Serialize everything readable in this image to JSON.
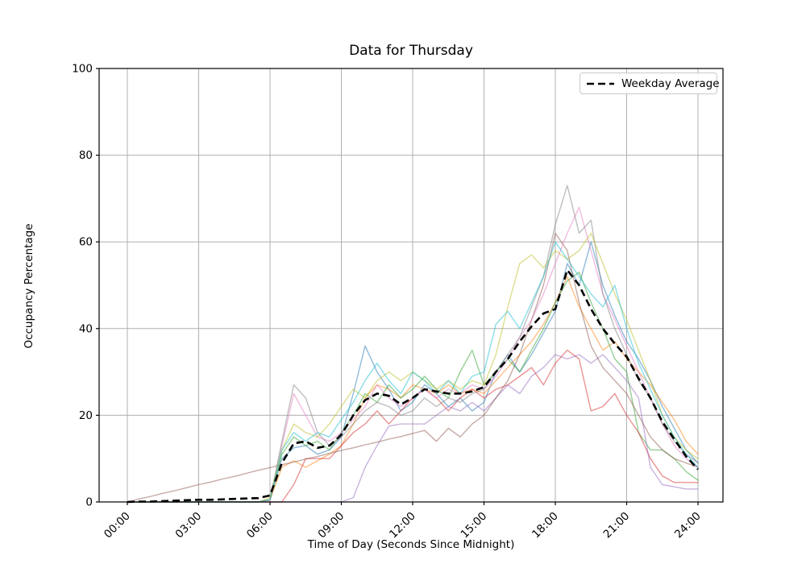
{
  "chart_data": {
    "type": "line",
    "title": "Data for Thursday",
    "xlabel": "Time of Day (Seconds Since Midnight)",
    "ylabel": "Occupancy Percentage",
    "x_start_hours": 0,
    "x_step_hours": 0.5,
    "x_tick_labels": [
      "00:00",
      "03:00",
      "06:00",
      "09:00",
      "12:00",
      "15:00",
      "18:00",
      "21:00",
      "24:00"
    ],
    "x_tick_hours": [
      0,
      3,
      6,
      9,
      12,
      15,
      18,
      21,
      24
    ],
    "y_ticks": [
      0,
      20,
      40,
      60,
      80,
      100
    ],
    "ylim": [
      0,
      100
    ],
    "xlim_hours": [
      0,
      24
    ],
    "grid": "on",
    "legend": {
      "position": "upper-right",
      "entries": [
        {
          "label": "Weekday Average",
          "style": "dashed",
          "color": "#000000"
        }
      ]
    },
    "colors": {
      "grid": "#b0b0b0",
      "spine": "#000000",
      "average": "#000000",
      "day_alpha": 0.5
    },
    "series": [
      {
        "name": "day-blue",
        "color": "#1f77b4",
        "values": [
          0,
          0,
          0,
          0,
          0,
          0,
          0,
          0,
          0,
          0,
          0,
          0,
          0.5,
          10,
          12.5,
          13,
          11,
          12,
          15,
          25,
          36,
          30,
          26,
          21,
          23,
          27,
          25,
          22,
          24,
          21,
          23,
          30,
          34,
          30,
          34,
          39,
          44,
          55,
          50,
          60,
          50,
          43,
          37,
          33,
          28,
          22,
          17,
          12,
          9
        ]
      },
      {
        "name": "day-orange",
        "color": "#ff7f0e",
        "values": [
          0,
          0,
          0,
          0,
          0,
          0,
          0,
          0,
          0,
          0,
          0,
          0,
          0.5,
          8,
          9.5,
          8,
          9.5,
          11,
          13,
          18,
          24,
          27,
          26,
          24,
          27,
          26,
          25,
          27,
          25,
          26,
          25,
          28,
          31,
          34,
          37,
          41,
          46,
          52,
          45,
          40,
          35,
          37,
          33,
          30,
          27,
          23,
          19,
          14,
          11
        ]
      },
      {
        "name": "day-green",
        "color": "#2ca02c",
        "values": [
          0,
          0,
          0,
          0,
          0,
          0,
          0,
          0,
          0,
          0,
          0,
          0,
          0.5,
          11,
          15,
          13,
          14,
          12,
          16,
          20,
          25,
          23,
          27,
          24,
          26,
          29,
          26,
          24,
          30,
          35,
          27,
          30,
          33,
          30,
          35,
          40,
          46,
          51,
          53,
          46,
          40,
          33,
          30,
          16,
          12,
          12,
          10,
          7,
          5
        ]
      },
      {
        "name": "day-red",
        "color": "#d62728",
        "values": [
          0,
          0,
          0,
          0,
          0,
          0,
          0,
          0,
          0,
          0,
          0,
          0,
          0,
          0,
          4,
          10,
          10,
          10,
          13,
          16,
          18,
          21,
          18,
          21,
          24,
          26,
          24,
          21,
          24,
          26,
          24,
          26,
          27,
          29,
          31,
          27,
          32,
          35,
          33,
          21,
          22,
          25,
          20,
          16,
          10,
          6,
          4.5,
          4.5,
          4.5
        ]
      },
      {
        "name": "day-purple",
        "color": "#9467bd",
        "values": [
          0,
          0,
          0,
          0,
          0,
          0,
          0,
          0,
          0,
          0,
          0,
          0,
          0,
          0,
          0,
          0,
          0,
          0,
          0,
          1,
          8,
          13,
          17.5,
          18,
          18,
          18,
          20,
          22,
          21,
          23,
          21,
          24,
          27,
          25,
          29,
          31,
          34,
          33,
          34,
          32,
          34,
          31,
          28,
          24,
          8,
          4,
          3.5,
          3,
          3
        ]
      },
      {
        "name": "day-brown",
        "color": "#8c564b",
        "values": [
          0,
          0.7,
          1.3,
          2,
          2.6,
          3.3,
          4,
          4.6,
          5.3,
          5.9,
          6.6,
          7.3,
          7.9,
          8.6,
          9.2,
          9.9,
          10.5,
          11.2,
          11.9,
          12.5,
          13.2,
          13.8,
          14.5,
          15.1,
          15.8,
          16.5,
          14,
          17,
          15,
          18,
          20,
          24,
          28,
          34,
          42,
          50,
          62,
          58,
          46,
          36,
          31,
          28,
          25,
          20,
          15,
          12,
          10,
          9,
          8
        ]
      },
      {
        "name": "day-pink",
        "color": "#e377c2",
        "values": [
          0,
          0,
          0,
          0,
          0,
          0,
          0,
          0,
          0,
          0,
          0,
          0,
          0.5,
          13,
          25,
          20,
          15,
          14,
          16,
          19,
          22,
          27,
          24,
          22,
          24,
          26,
          24,
          26,
          25,
          27,
          26,
          29,
          33,
          38,
          42,
          48,
          55,
          62,
          68,
          58,
          48,
          42,
          36,
          30,
          24,
          18,
          13,
          10,
          8
        ]
      },
      {
        "name": "day-gray",
        "color": "#7f7f7f",
        "values": [
          0,
          0,
          0,
          0,
          0,
          0,
          0,
          0,
          0,
          0,
          0,
          0,
          0.5,
          14,
          27,
          24,
          16,
          13,
          15,
          18,
          21,
          23,
          22,
          20,
          21,
          24,
          22,
          24,
          23,
          25,
          26,
          30,
          34,
          38,
          45,
          52,
          64,
          73,
          62,
          65,
          48,
          40,
          34,
          28,
          24,
          18,
          14,
          11,
          9
        ]
      },
      {
        "name": "day-olive",
        "color": "#bcbd22",
        "values": [
          0,
          0,
          0,
          0,
          0,
          0,
          0,
          0,
          0,
          0,
          0,
          0,
          1,
          12,
          18,
          16,
          15,
          18,
          22,
          26,
          24,
          28,
          30,
          28,
          30,
          28,
          26,
          28,
          26,
          28,
          27,
          34,
          45,
          55,
          57,
          54,
          58,
          56,
          58,
          62,
          55,
          48,
          42,
          35,
          28,
          20,
          15,
          12,
          10
        ]
      },
      {
        "name": "day-cyan",
        "color": "#17becf",
        "values": [
          0,
          0,
          0,
          0,
          0,
          0,
          0,
          0,
          0,
          0,
          0,
          0,
          0.5,
          12,
          16,
          14,
          16,
          15,
          19,
          23,
          28,
          32,
          28,
          25,
          30,
          28,
          25,
          28,
          25,
          29,
          30,
          41,
          44,
          40,
          46,
          52,
          60,
          56,
          52,
          48,
          45,
          50,
          40,
          32,
          26,
          20,
          15,
          11,
          8
        ]
      }
    ],
    "average_series": {
      "name": "Weekday Average",
      "color": "#000000",
      "values": [
        0,
        0.1,
        0.1,
        0.2,
        0.3,
        0.4,
        0.5,
        0.5,
        0.6,
        0.7,
        0.8,
        0.9,
        1.5,
        9,
        13.5,
        14,
        12.5,
        13,
        15.5,
        20,
        23.5,
        25,
        24.5,
        22.5,
        24,
        26,
        25.5,
        25,
        25,
        25.5,
        26.5,
        30,
        33,
        37,
        40.5,
        43.5,
        44.5,
        53.5,
        50,
        44.5,
        40,
        36.5,
        33.5,
        28.5,
        24,
        18.5,
        14.5,
        10.5,
        7.5
      ]
    }
  }
}
